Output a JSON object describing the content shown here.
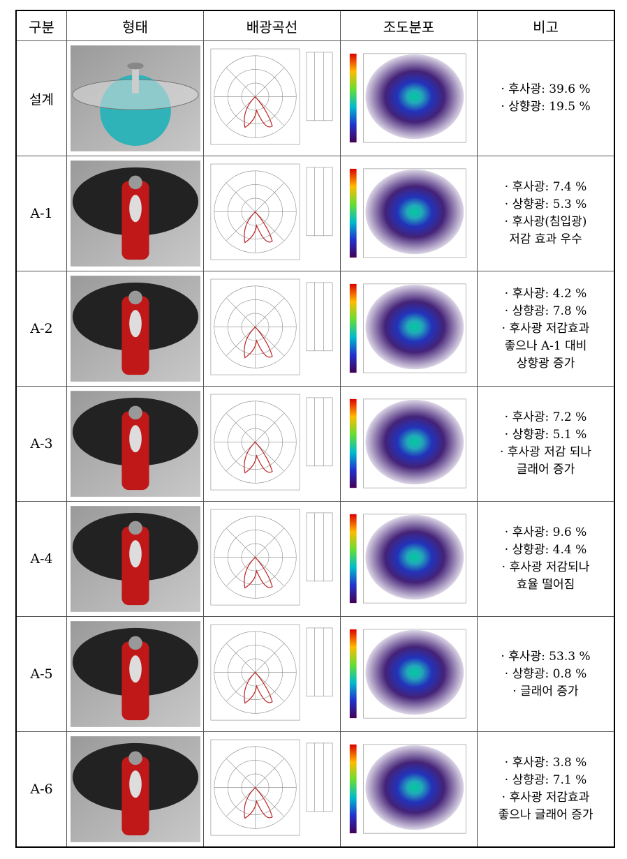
{
  "table": {
    "header": [
      "구분",
      "형태",
      "배광곡선",
      "조도분포",
      "비고"
    ],
    "rows": [
      {
        "label": "설계",
        "remarks": [
          "· 후사광: 39.6 %",
          "· 상향광: 19.5 %"
        ]
      },
      {
        "label": "A-1",
        "remarks": [
          "· 후사광: 7.4 %",
          "· 상향광: 5.3 %",
          "· 후사광(침입광)",
          "저감 효과 우수"
        ]
      },
      {
        "label": "A-2",
        "remarks": [
          "· 후사광: 4.2 %",
          "· 상향광: 7.8 %",
          "· 후사광 저감효과",
          "좋으나 A-1 대비",
          "상향광 증가"
        ]
      },
      {
        "label": "A-3",
        "remarks": [
          "· 후사광: 7.2 %",
          "· 상향광: 5.1 %",
          "· 후사광 저감 되나",
          "글래어 증가"
        ]
      },
      {
        "label": "A-4",
        "remarks": [
          "· 후사광: 9.6 %",
          "· 상향광: 4.4 %",
          "· 후사광 저감되나",
          "효율 떨어짐"
        ]
      },
      {
        "label": "A-5",
        "remarks": [
          "· 후사광: 53.3 %",
          "· 상향광: 0.8 %",
          "· 글래어 증가"
        ]
      },
      {
        "label": "A-6",
        "remarks": [
          "· 후사광: 3.8 %",
          "· 상향광: 7.1 %",
          "· 후사광 저감효과",
          "좋으나 글래어 증가"
        ]
      }
    ]
  }
}
